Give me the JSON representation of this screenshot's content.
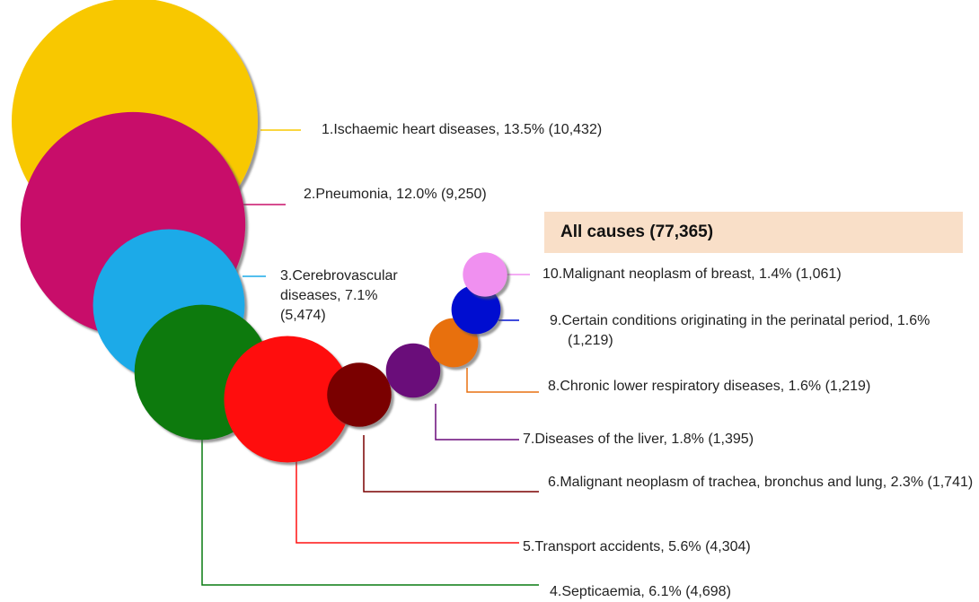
{
  "chart_data": {
    "type": "bubble",
    "title": "All causes  (77,365)",
    "labels": [
      "1.Ischaemic heart diseases, 13.5% (10,432)",
      "2.Pneumonia, 12.0% (9,250)",
      "3.Cerebrovascular diseases, 7.1% (5,474)",
      "4.Septicaemia, 6.1% (4,698)",
      "5.Transport accidents, 5.6% (4,304)",
      "6.Malignant neoplasm of trachea, bronchus and lung, 2.3% (1,741)",
      "7.Diseases of the liver, 1.8% (1,395)",
      "8.Chronic lower respiratory diseases, 1.6% (1,219)",
      "9.Certain conditions originating in the perinatal period, 1.6% (1,219)",
      "10.Malignant neoplasm of breast, 1.4% (1,061)"
    ],
    "values": [
      10432,
      9250,
      5474,
      4698,
      4304,
      1741,
      1395,
      1219,
      1219,
      1061
    ],
    "colors": [
      "#f8c800",
      "#c8106a",
      "#1aaae8",
      "#087a10",
      "#ff1010",
      "#7a0000",
      "#6a0a7a",
      "#e87010",
      "#0010d0",
      "#f090f0"
    ]
  }
}
